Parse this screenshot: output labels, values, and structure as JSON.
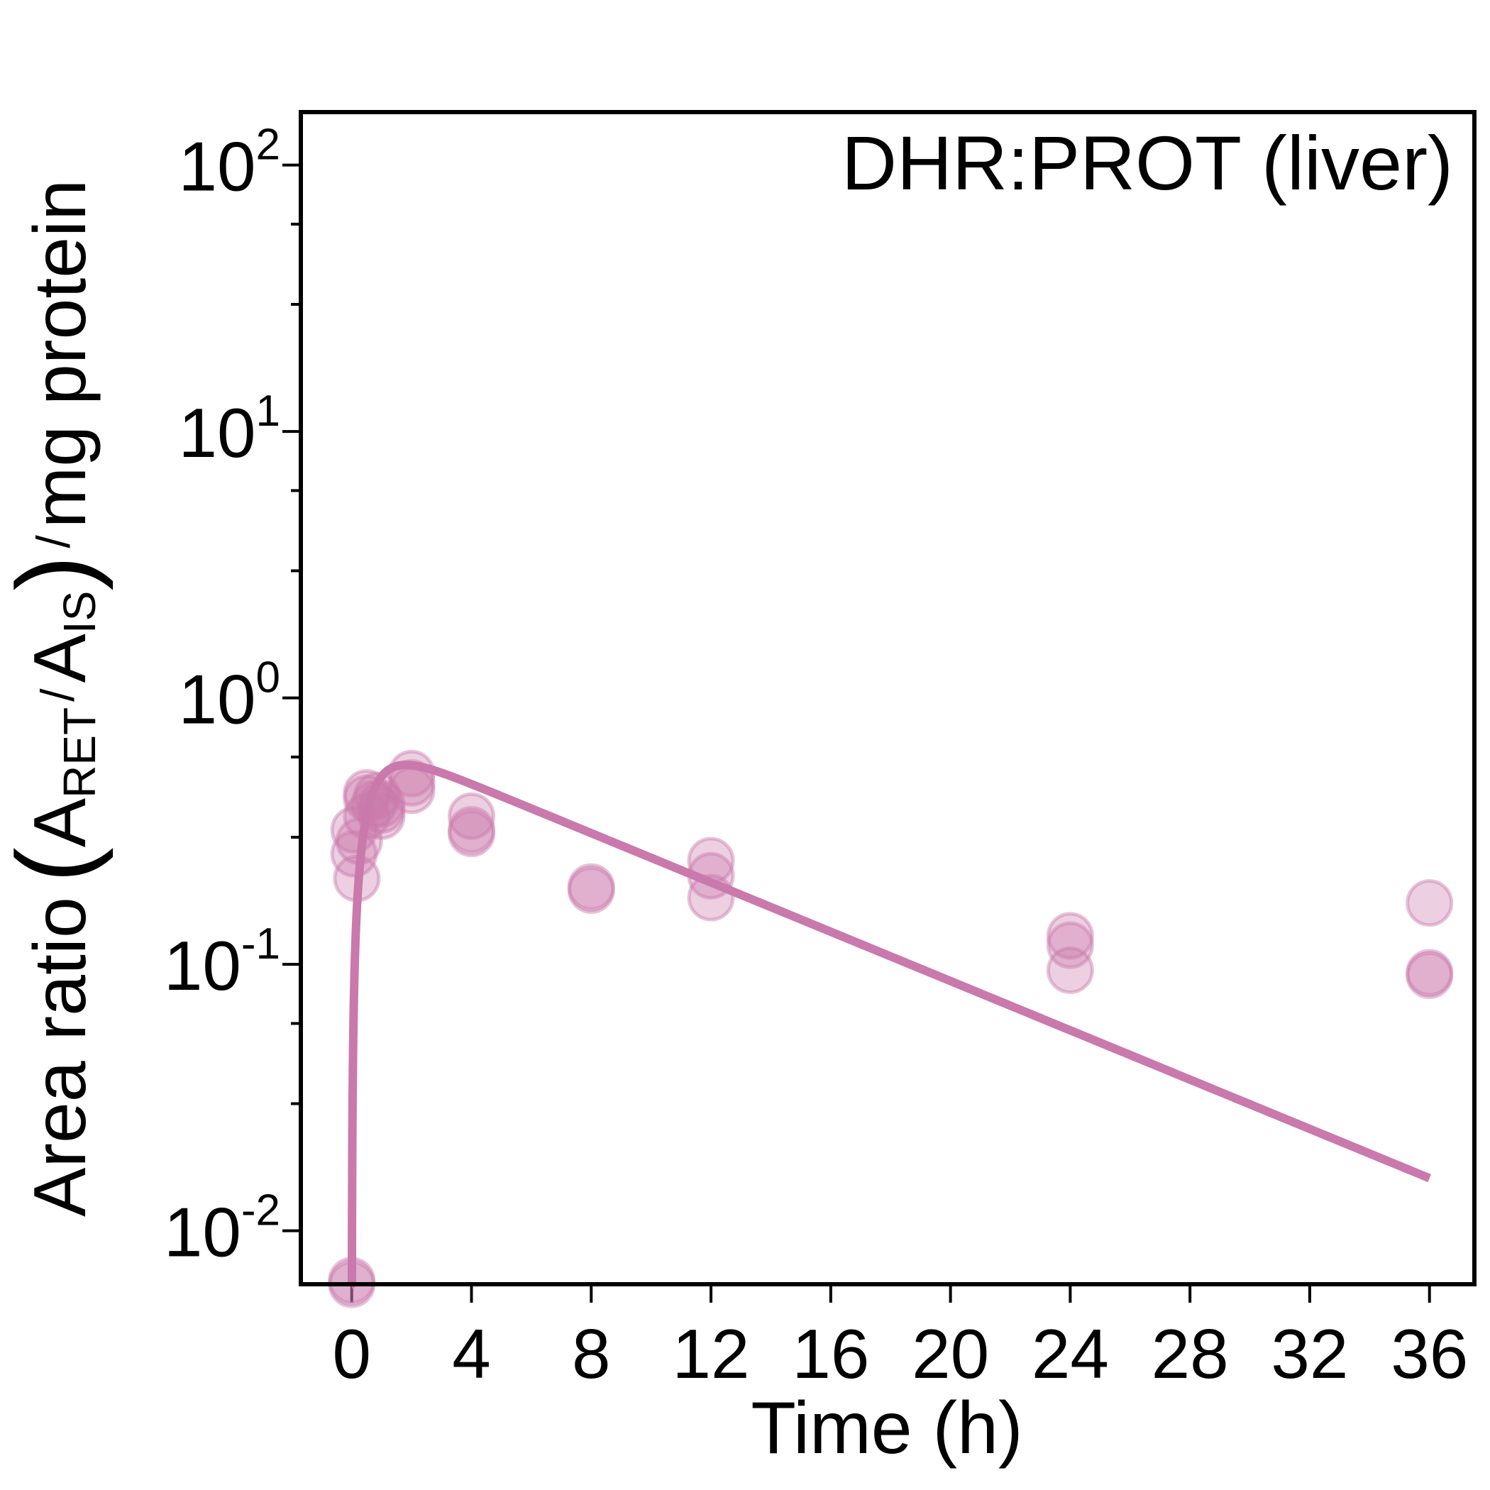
{
  "chart_data": {
    "type": "scatter",
    "panel_label": "DHR:PROT (liver)",
    "xlabel": "Time (h)",
    "ylabel": {
      "prefix": "Area ratio",
      "num": "A",
      "num_sub": "RET",
      "den": "A",
      "den_sub": "IS",
      "suffix": "mg protein"
    },
    "x_ticks": [
      0,
      4,
      8,
      12,
      16,
      20,
      24,
      28,
      32,
      36
    ],
    "xlim": [
      -1.7,
      37.5
    ],
    "y_scale": "log",
    "ylim": [
      0.0063,
      158
    ],
    "y_ticks": [
      {
        "value": 0.01,
        "base": "10",
        "exp": "-2"
      },
      {
        "value": 0.1,
        "base": "10",
        "exp": "-1"
      },
      {
        "value": 1,
        "base": "10",
        "exp": "0"
      },
      {
        "value": 10,
        "base": "10",
        "exp": "1"
      },
      {
        "value": 100,
        "base": "10",
        "exp": "2"
      }
    ],
    "color": "#c979ab",
    "points": [
      {
        "x": 0,
        "y": 0.0065
      },
      {
        "x": 0,
        "y": 0.0063
      },
      {
        "x": 0.08,
        "y": 0.32
      },
      {
        "x": 0.08,
        "y": 0.26
      },
      {
        "x": 0.17,
        "y": 0.21
      },
      {
        "x": 0.25,
        "y": 0.29
      },
      {
        "x": 0.5,
        "y": 0.44
      },
      {
        "x": 0.5,
        "y": 0.42
      },
      {
        "x": 0.5,
        "y": 0.36
      },
      {
        "x": 0.75,
        "y": 0.4
      },
      {
        "x": 0.85,
        "y": 0.43
      },
      {
        "x": 1,
        "y": 0.38
      },
      {
        "x": 1,
        "y": 0.36
      },
      {
        "x": 1,
        "y": 0.4
      },
      {
        "x": 2,
        "y": 0.52
      },
      {
        "x": 2,
        "y": 0.48
      },
      {
        "x": 2,
        "y": 0.45
      },
      {
        "x": 4,
        "y": 0.36
      },
      {
        "x": 4,
        "y": 0.32
      },
      {
        "x": 4,
        "y": 0.31
      },
      {
        "x": 8,
        "y": 0.195
      },
      {
        "x": 8,
        "y": 0.19
      },
      {
        "x": 12,
        "y": 0.245
      },
      {
        "x": 12,
        "y": 0.215
      },
      {
        "x": 12,
        "y": 0.178
      },
      {
        "x": 24,
        "y": 0.128
      },
      {
        "x": 24,
        "y": 0.118
      },
      {
        "x": 24,
        "y": 0.095
      },
      {
        "x": 36,
        "y": 0.17
      },
      {
        "x": 36,
        "y": 0.093
      },
      {
        "x": 36,
        "y": 0.091
      }
    ],
    "model": {
      "ka": 1.6,
      "ke": 0.1065,
      "amp": 0.68,
      "x_start": 0,
      "x_end": 36
    }
  }
}
